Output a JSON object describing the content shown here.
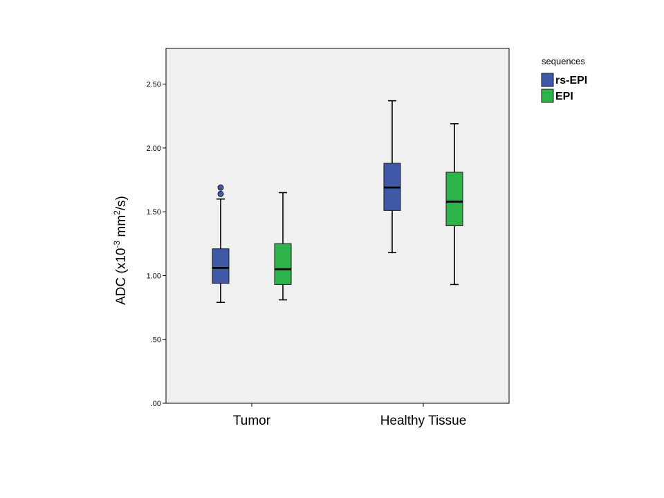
{
  "chart_data": {
    "type": "boxplot",
    "ylabel": "ADC (x10-3 mm2/s)",
    "ylabel_parts": {
      "base": "ADC (x10",
      "exp1": "-3",
      "mid": " mm",
      "exp2": "2",
      "end": "/s)"
    },
    "ylim": [
      0,
      2.78
    ],
    "yticks": [
      0,
      0.5,
      1.0,
      1.5,
      2.0,
      2.5
    ],
    "ytick_labels": [
      ".00",
      ".50",
      "1.00",
      "1.50",
      "2.00",
      "2.50"
    ],
    "categories": [
      "Tumor",
      "Healthy Tissue"
    ],
    "legend_title": "sequences",
    "legend_position": "top-right",
    "grid": false,
    "series": [
      {
        "name": "rs-EPI",
        "color": "#3f58a8",
        "boxes": [
          {
            "min": 0.79,
            "q1": 0.94,
            "median": 1.06,
            "q3": 1.21,
            "max": 1.6,
            "outliers": [
              1.64,
              1.69
            ]
          },
          {
            "min": 1.18,
            "q1": 1.51,
            "median": 1.69,
            "q3": 1.88,
            "max": 2.37,
            "outliers": []
          }
        ]
      },
      {
        "name": "EPI",
        "color": "#2db34a",
        "boxes": [
          {
            "min": 0.81,
            "q1": 0.93,
            "median": 1.05,
            "q3": 1.25,
            "max": 1.65,
            "outliers": []
          },
          {
            "min": 0.93,
            "q1": 1.39,
            "median": 1.58,
            "q3": 1.81,
            "max": 2.19,
            "outliers": []
          }
        ]
      }
    ]
  }
}
